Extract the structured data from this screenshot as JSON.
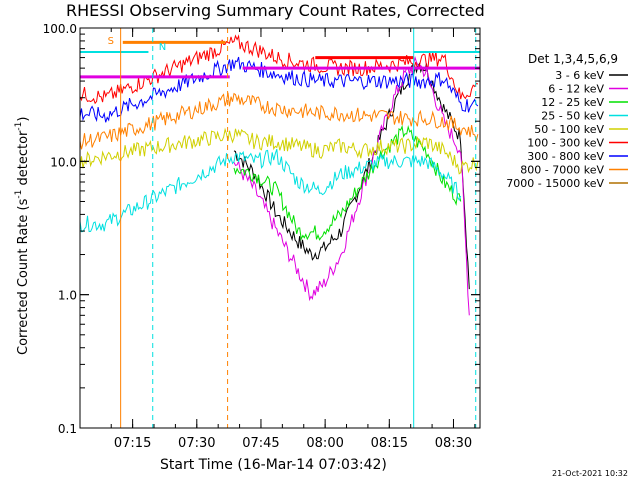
{
  "chart_data": {
    "type": "line",
    "title": "RHESSI Observing Summary Count Rates, Corrected",
    "xlabel": "Start Time (16-Mar-14 07:03:42)",
    "ylabel_prefix": "Corrected Count Rate (s",
    "ylabel_exp1": "-1",
    "ylabel_mid": " detector",
    "ylabel_exp2": "-1",
    "ylabel_suffix": ")",
    "ylim": [
      0.1,
      100.0
    ],
    "yscale": "log",
    "ytick_values": [
      0.1,
      1.0,
      10.0,
      100.0
    ],
    "ytick_labels": [
      "0.1",
      "1.0",
      "10.0",
      "100.0"
    ],
    "xlim_minutes": [
      -1.0,
      92.5
    ],
    "xtick_minutes": [
      11.3,
      26.3,
      41.3,
      56.3,
      71.3,
      86.3
    ],
    "xtick_labels": [
      "07:15",
      "07:30",
      "07:45",
      "08:00",
      "08:15",
      "08:30"
    ],
    "legend_title": "Det 1,3,4,5,6,9",
    "legend_placement": "right",
    "timestamp": "21-Oct-2021 10:32",
    "series": [
      {
        "name": "3 - 6 keV",
        "color": "#000000",
        "points": [
          [
            35,
            12
          ],
          [
            40,
            8
          ],
          [
            45,
            4
          ],
          [
            50,
            2.5
          ],
          [
            53,
            2
          ],
          [
            56,
            2.2
          ],
          [
            60,
            3
          ],
          [
            64,
            6
          ],
          [
            68,
            12
          ],
          [
            72,
            25
          ],
          [
            75,
            40
          ],
          [
            78,
            55
          ],
          [
            80,
            50
          ],
          [
            84,
            25
          ],
          [
            88,
            15
          ],
          [
            90,
            1.1
          ]
        ]
      },
      {
        "name": "6 - 12 keV",
        "color": "#e000e0",
        "points": [
          [
            35,
            10
          ],
          [
            40,
            6
          ],
          [
            45,
            3
          ],
          [
            50,
            1.5
          ],
          [
            53,
            1
          ],
          [
            56,
            1.2
          ],
          [
            60,
            2
          ],
          [
            64,
            5
          ],
          [
            68,
            12
          ],
          [
            72,
            28
          ],
          [
            75,
            45
          ],
          [
            78,
            55
          ],
          [
            80,
            45
          ],
          [
            84,
            20
          ],
          [
            88,
            12
          ],
          [
            90,
            0.7
          ]
        ]
      },
      {
        "name": "12 - 25 keV",
        "color": "#00e000",
        "points": [
          [
            35,
            9
          ],
          [
            40,
            8
          ],
          [
            45,
            6
          ],
          [
            50,
            3
          ],
          [
            55,
            2.9
          ],
          [
            60,
            4
          ],
          [
            65,
            7
          ],
          [
            70,
            12
          ],
          [
            75,
            17
          ],
          [
            80,
            12
          ],
          [
            84,
            7
          ],
          [
            88,
            5
          ]
        ]
      },
      {
        "name": "25 - 50 keV",
        "color": "#00e0e0",
        "points": [
          [
            -1,
            3.4
          ],
          [
            5,
            3.4
          ],
          [
            35,
            11
          ],
          [
            40,
            10
          ],
          [
            45,
            11
          ],
          [
            50,
            7
          ],
          [
            55,
            6
          ],
          [
            60,
            8
          ],
          [
            65,
            9
          ],
          [
            70,
            10
          ],
          [
            75,
            10
          ],
          [
            80,
            10
          ],
          [
            84,
            8
          ],
          [
            88,
            5.5
          ]
        ]
      },
      {
        "name": "50 - 100 keV",
        "color": "#d0d000",
        "points": [
          [
            -1,
            10
          ],
          [
            5,
            11
          ],
          [
            35,
            16
          ],
          [
            40,
            14
          ],
          [
            45,
            14
          ],
          [
            50,
            13
          ],
          [
            55,
            12
          ],
          [
            60,
            13
          ],
          [
            65,
            12
          ],
          [
            70,
            13
          ],
          [
            75,
            13
          ],
          [
            80,
            14
          ],
          [
            84,
            12
          ],
          [
            88,
            9
          ],
          [
            92,
            10
          ]
        ]
      },
      {
        "name": "100 - 300 keV",
        "color": "#ff0000",
        "points": [
          [
            -1,
            32
          ],
          [
            5,
            30
          ],
          [
            35,
            78
          ],
          [
            40,
            70
          ],
          [
            45,
            60
          ],
          [
            50,
            55
          ],
          [
            55,
            52
          ],
          [
            60,
            50
          ],
          [
            65,
            50
          ],
          [
            70,
            52
          ],
          [
            75,
            55
          ],
          [
            80,
            58
          ],
          [
            84,
            60
          ],
          [
            88,
            30
          ],
          [
            92,
            38
          ]
        ]
      },
      {
        "name": "300 - 800 keV",
        "color": "#0000ff",
        "points": [
          [
            -1,
            23
          ],
          [
            5,
            22
          ],
          [
            35,
            55
          ],
          [
            40,
            50
          ],
          [
            45,
            45
          ],
          [
            50,
            42
          ],
          [
            55,
            40
          ],
          [
            60,
            40
          ],
          [
            65,
            40
          ],
          [
            70,
            40
          ],
          [
            75,
            40
          ],
          [
            80,
            40
          ],
          [
            84,
            42
          ],
          [
            88,
            27
          ],
          [
            92,
            26
          ]
        ]
      },
      {
        "name": "800 - 7000 keV",
        "color": "#ff8000",
        "points": [
          [
            -1,
            14
          ],
          [
            5,
            15
          ],
          [
            35,
            30
          ],
          [
            40,
            27
          ],
          [
            45,
            25
          ],
          [
            50,
            24
          ],
          [
            55,
            23
          ],
          [
            60,
            23
          ],
          [
            65,
            22
          ],
          [
            70,
            22
          ],
          [
            75,
            21
          ],
          [
            80,
            21
          ],
          [
            84,
            20
          ],
          [
            88,
            18
          ],
          [
            92,
            16
          ]
        ]
      },
      {
        "name": "7000 - 15000 keV",
        "color": "#b07000",
        "points": []
      }
    ]
  },
  "overlays": {
    "attenuator_label": "S",
    "night_label": "N",
    "attenuator_color": "#ff8000",
    "night_color": "#00e0e0",
    "magenta_bars": [
      [
        -1,
        43
      ],
      [
        34,
        43
      ],
      [
        37,
        50
      ],
      [
        92.5,
        50
      ]
    ],
    "red_bar": [
      54,
      77,
      60
    ],
    "orange_bar": [
      9,
      33,
      78
    ],
    "cyan_bars": [
      [
        -1,
        15,
        66
      ],
      [
        77,
        92.5,
        66
      ]
    ],
    "orange_vlines": [
      8.5,
      33.5
    ],
    "cyan_vlines": [
      -1,
      77
    ],
    "cyan_dashed_vlines": [
      16,
      91.5
    ]
  }
}
